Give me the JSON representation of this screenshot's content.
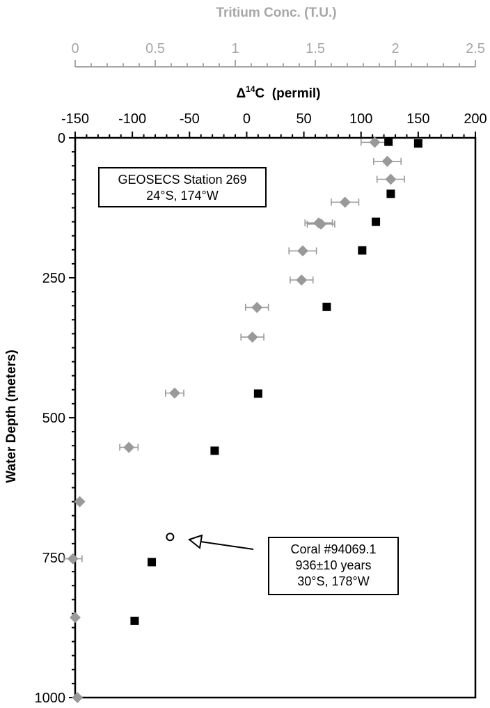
{
  "chart_data": {
    "type": "scatter",
    "top_axis": {
      "label": "Tritium Conc. (T.U.)",
      "range": [
        0,
        2.5
      ],
      "ticks": [
        "0",
        "0.5",
        "1",
        "1.5",
        "2",
        "2.5"
      ],
      "color": "#a6a6a6"
    },
    "x_axis": {
      "label_delta": "Δ",
      "label_sup": "14",
      "label_rest": "C  (permil)",
      "range": [
        -150,
        200
      ],
      "ticks": [
        "-150",
        "-100",
        "-50",
        "0",
        "50",
        "100",
        "150",
        "200"
      ]
    },
    "y_axis": {
      "label": "Water Depth (meters)",
      "range": [
        0,
        1000
      ],
      "inverted": true,
      "ticks": [
        "0",
        "250",
        "500",
        "750",
        "1000"
      ]
    },
    "series": [
      {
        "marker": "diamond",
        "color": "#999999",
        "points": [
          {
            "x": 112,
            "y": 8,
            "err": 12
          },
          {
            "x": 123,
            "y": 42,
            "err": 12
          },
          {
            "x": 126,
            "y": 74,
            "err": 12
          },
          {
            "x": 86,
            "y": 115,
            "err": 12
          },
          {
            "x": 63,
            "y": 152,
            "err": 12
          },
          {
            "x": 65,
            "y": 154,
            "err": 12
          },
          {
            "x": 49,
            "y": 202,
            "err": 12
          },
          {
            "x": 48,
            "y": 254,
            "err": 10
          },
          {
            "x": 9,
            "y": 303,
            "err": 10
          },
          {
            "x": 5,
            "y": 356,
            "err": 10
          },
          {
            "x": -63,
            "y": 456,
            "err": 8
          },
          {
            "x": -103,
            "y": 553,
            "err": 8
          },
          {
            "x": -146,
            "y": 650
          },
          {
            "x": -152,
            "y": 752,
            "err": 8
          },
          {
            "x": -150,
            "y": 857
          },
          {
            "x": -148,
            "y": 1000
          }
        ]
      },
      {
        "marker": "square",
        "color": "#000000",
        "points": [
          {
            "x": 124,
            "y": 7
          },
          {
            "x": 150,
            "y": 10
          },
          {
            "x": 126,
            "y": 100
          },
          {
            "x": 113,
            "y": 150
          },
          {
            "x": 101,
            "y": 201
          },
          {
            "x": 70,
            "y": 302
          },
          {
            "x": 10,
            "y": 457
          },
          {
            "x": -28,
            "y": 559
          },
          {
            "x": -83,
            "y": 758
          },
          {
            "x": -98,
            "y": 863
          }
        ]
      },
      {
        "marker": "open-circle",
        "color": "#000000",
        "points": [
          {
            "x": -67,
            "y": 713
          }
        ]
      }
    ],
    "annotations": {
      "station_box": {
        "lines": [
          "GEOSECS Station 269",
          "24°S, 174°W"
        ]
      },
      "coral_box": {
        "lines": [
          "Coral #94069.1",
          "936±10 years",
          "30°S, 178°W"
        ]
      }
    }
  }
}
